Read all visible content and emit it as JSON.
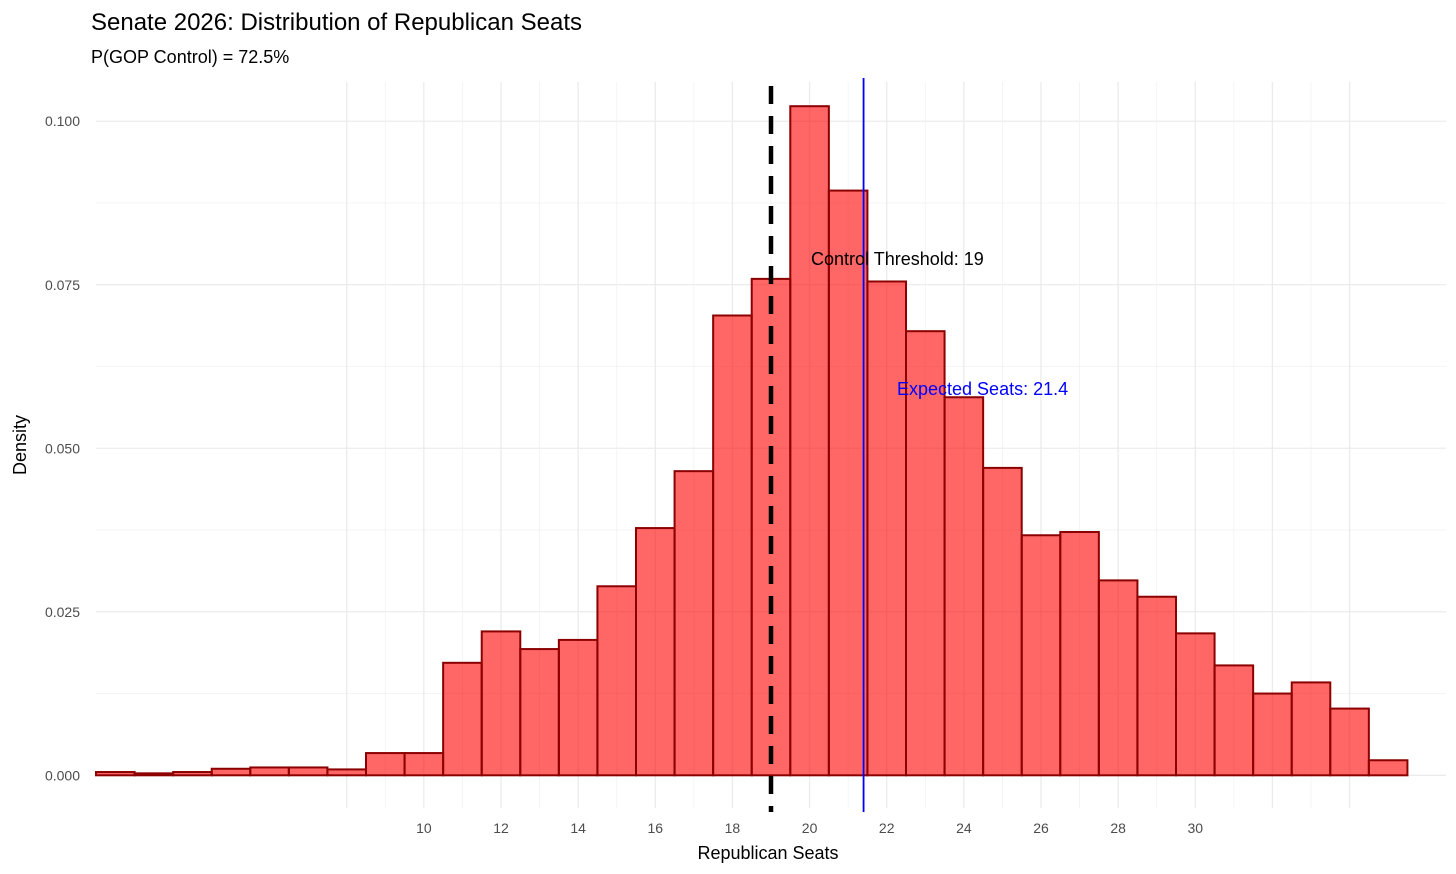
{
  "chart_data": {
    "type": "bar",
    "title": "Senate 2026: Distribution of Republican Seats",
    "subtitle": "P(GOP Control) = 72.5%",
    "xlabel": "Republican Seats",
    "ylabel": "Density",
    "xlim": [
      -0.5,
      34.5
    ],
    "ylim": [
      -0.005,
      0.106
    ],
    "grid": true,
    "x_ticks": [
      10,
      12,
      14,
      16,
      18,
      20,
      22,
      24,
      26,
      28,
      30
    ],
    "y_ticks": [
      0.0,
      0.025,
      0.05,
      0.075,
      0.1
    ],
    "y_tick_labels": [
      "0.000",
      "0.025",
      "0.050",
      "0.075",
      "0.100"
    ],
    "bin_width": 1,
    "bins": [
      {
        "x": 0,
        "density": 0.0005
      },
      {
        "x": 1,
        "density": 0.0003
      },
      {
        "x": 2,
        "density": 0.0005
      },
      {
        "x": 3,
        "density": 0.001
      },
      {
        "x": 4,
        "density": 0.0012
      },
      {
        "x": 5,
        "density": 0.0012
      },
      {
        "x": 6,
        "density": 0.0009
      },
      {
        "x": 7,
        "density": 0.0034
      },
      {
        "x": 8,
        "density": 0.0034
      },
      {
        "x": 9,
        "density": 0.0172
      },
      {
        "x": 10,
        "density": 0.022
      },
      {
        "x": 11,
        "density": 0.0193
      },
      {
        "x": 12,
        "density": 0.0207
      },
      {
        "x": 13,
        "density": 0.0289
      },
      {
        "x": 14,
        "density": 0.0378
      },
      {
        "x": 15,
        "density": 0.0465
      },
      {
        "x": 16,
        "density": 0.0703
      },
      {
        "x": 17,
        "density": 0.0759
      },
      {
        "x": 18,
        "density": 0.1023
      },
      {
        "x": 19,
        "density": 0.0894
      },
      {
        "x": 20,
        "density": 0.0755
      },
      {
        "x": 21,
        "density": 0.0679
      },
      {
        "x": 22,
        "density": 0.0578
      },
      {
        "x": 23,
        "density": 0.047
      },
      {
        "x": 24,
        "density": 0.0367
      },
      {
        "x": 25,
        "density": 0.0372
      },
      {
        "x": 26,
        "density": 0.0298
      },
      {
        "x": 27,
        "density": 0.0273
      },
      {
        "x": 28,
        "density": 0.0217
      },
      {
        "x": 29,
        "density": 0.0168
      },
      {
        "x": 30,
        "density": 0.0125
      },
      {
        "x": 31,
        "density": 0.0142
      },
      {
        "x": 32,
        "density": 0.0102
      },
      {
        "x": 33,
        "density": 0.0023
      }
    ],
    "tick_offset": 2,
    "threshold": {
      "x": 17,
      "label": "Control Threshold: 19",
      "color": "#000000"
    },
    "expected": {
      "x": 19.4,
      "label": "Expected Seats: 21.4",
      "color": "#0000ff"
    },
    "bar_fill": "#ff0000",
    "bar_stroke": "#8b0000"
  }
}
